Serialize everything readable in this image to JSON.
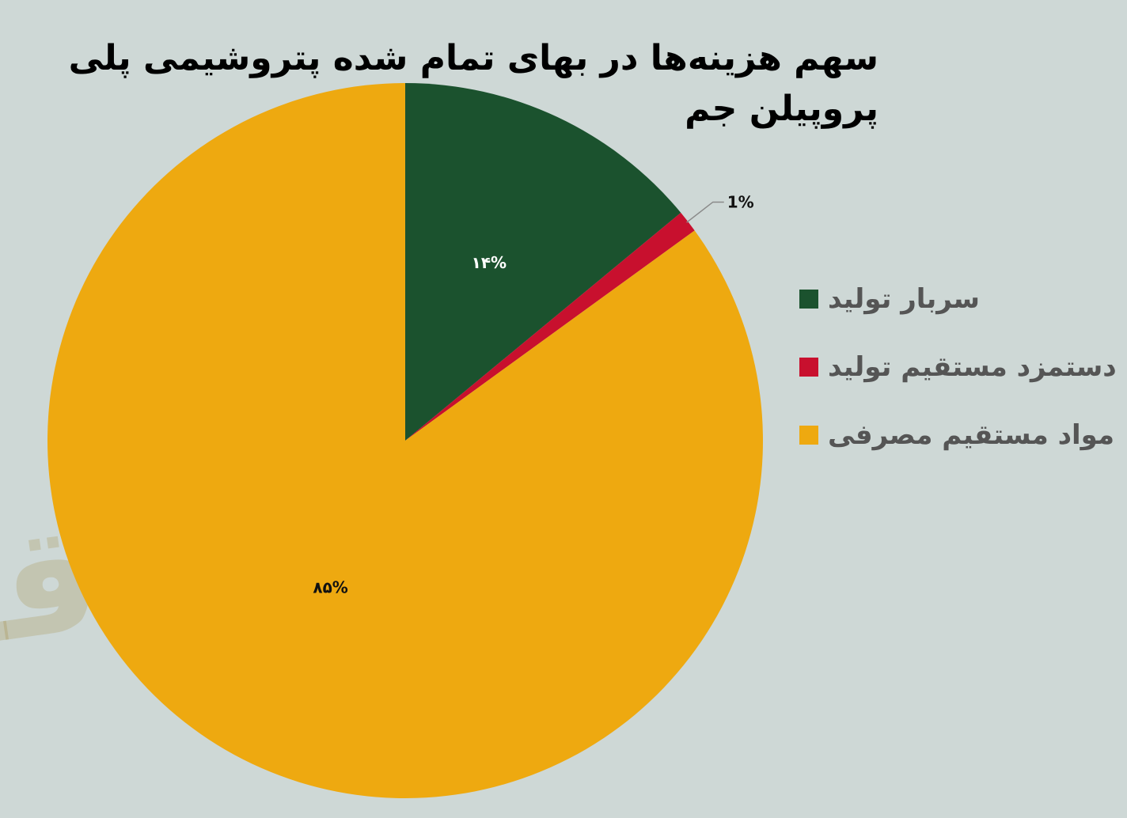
{
  "chart_data": {
    "type": "pie",
    "title": "سهم هزینه‌ها در بهای تمام شده پتروشیمی پلی پروپیلن جم",
    "slices": [
      {
        "label": "سربار تولید",
        "value": 14,
        "display": "۱۴%",
        "color": "#1b522e"
      },
      {
        "label": "دستمزد مستقیم تولید",
        "value": 1,
        "display": "1%",
        "color": "#c8102e"
      },
      {
        "label": "مواد مستقیم مصرفی",
        "value": 85,
        "display": "۸۵%",
        "color": "#eea910"
      }
    ],
    "legend_position": "right",
    "start_angle": "top",
    "direction": "clockwise"
  },
  "watermark": "فردای اقتصاد"
}
